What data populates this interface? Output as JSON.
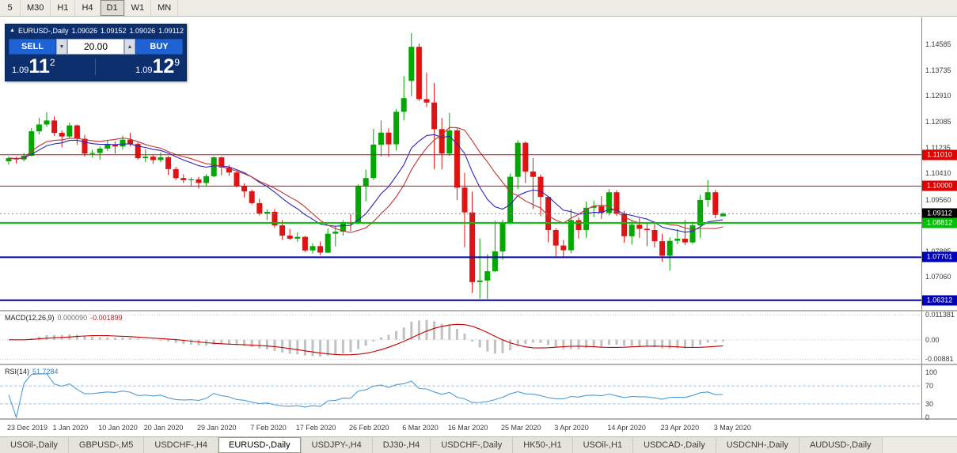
{
  "toolbar": {
    "buttons": [
      "5",
      "M30",
      "H1",
      "H4",
      "D1",
      "W1",
      "MN"
    ],
    "active": "D1"
  },
  "chart_header": {
    "symbol": "EURUSD-,Daily",
    "open": "1.09026",
    "high": "1.09152",
    "low": "1.09026",
    "close": "1.09112"
  },
  "trade_panel": {
    "collapse_icon": "▲",
    "sell_label": "SELL",
    "buy_label": "BUY",
    "volume": "20.00",
    "volume_down_icon": "▼",
    "volume_up_icon": "▲",
    "sell_price": {
      "prefix": "1.09",
      "big": "11",
      "sup": "2"
    },
    "buy_price": {
      "prefix": "1.09",
      "big": "12",
      "sup": "9"
    }
  },
  "tabs": {
    "items": [
      "USOil-,Daily",
      "GBPUSD-,M5",
      "USDCHF-,H4",
      "EURUSD-,Daily",
      "USDJPY-,H4",
      "DJ30-,H4",
      "USDCHF-,Daily",
      "HK50-,H1",
      "USOil-,H1",
      "USDCAD-,Daily",
      "USDCNH-,Daily",
      "AUDUSD-,Daily"
    ],
    "active": "EURUSD-,Daily"
  },
  "colors": {
    "bull": "#00A800",
    "bear": "#E21212",
    "ma_fast": "#2626B8",
    "ma_slow": "#C03434",
    "macd_hist": "#C2C2C2",
    "macd_signal": "#C00000",
    "rsi_line": "#4E9CD6",
    "axis_text": "#3C3C3C"
  },
  "chart_data": {
    "type": "candlestick",
    "symbol": "EURUSD",
    "period": "Daily",
    "title": "EURUSD-,Daily",
    "y_axis_ticks": [
      {
        "text": "1.14585",
        "v": 1.14585
      },
      {
        "text": "1.13735",
        "v": 1.13735
      },
      {
        "text": "1.12910",
        "v": 1.1291
      },
      {
        "text": "1.12085",
        "v": 1.12085
      },
      {
        "text": "1.11235",
        "v": 1.11235
      },
      {
        "text": "1.10410",
        "v": 1.1041
      },
      {
        "text": "1.09560",
        "v": 1.0956
      },
      {
        "text": "1.08735",
        "v": 1.08735
      },
      {
        "text": "1.07885",
        "v": 1.07885
      },
      {
        "text": "1.07060",
        "v": 1.0706
      }
    ],
    "horizontal_lines": [
      {
        "label": "1.11010",
        "v": 1.1101,
        "color": "#E00000",
        "w": 1,
        "style": "solid",
        "role": ""
      },
      {
        "label": "1.10000",
        "v": 1.1,
        "color": "#E00000",
        "w": 1,
        "style": "solid",
        "role": ""
      },
      {
        "label": "1.09112",
        "v": 1.09112,
        "color": "#000000",
        "w": 1,
        "style": "dotted",
        "role": "current"
      },
      {
        "label": "1.08812",
        "v": 1.08812,
        "color": "#00C000",
        "w": 2,
        "style": "solid",
        "role": ""
      },
      {
        "label": "1.07701",
        "v": 1.07701,
        "color": "#0000B8",
        "w": 2,
        "style": "solid",
        "role": ""
      },
      {
        "label": "1.06312",
        "v": 1.06312,
        "color": "#0000B8",
        "w": 2,
        "style": "solid",
        "role": ""
      }
    ],
    "x_axis_labels": [
      {
        "text": "23 Dec 2019",
        "i": 0
      },
      {
        "text": "1 Jan 2020",
        "i": 6
      },
      {
        "text": "10 Jan 2020",
        "i": 12
      },
      {
        "text": "20 Jan 2020",
        "i": 18
      },
      {
        "text": "29 Jan 2020",
        "i": 25
      },
      {
        "text": "7 Feb 2020",
        "i": 32
      },
      {
        "text": "17 Feb 2020",
        "i": 38
      },
      {
        "text": "26 Feb 2020",
        "i": 45
      },
      {
        "text": "6 Mar 2020",
        "i": 52
      },
      {
        "text": "16 Mar 2020",
        "i": 58
      },
      {
        "text": "25 Mar 2020",
        "i": 65
      },
      {
        "text": "3 Apr 2020",
        "i": 72
      },
      {
        "text": "14 Apr 2020",
        "i": 79
      },
      {
        "text": "23 Apr 2020",
        "i": 86
      },
      {
        "text": "3 May 2020",
        "i": 93
      }
    ],
    "indicators": {
      "macd": {
        "name": "MACD(12,26,9)",
        "value_main": "0.000090",
        "value_signal": "-0.001899",
        "axis": [
          {
            "text": "0.011381",
            "v": 0.011381
          },
          {
            "text": "0.00",
            "v": 0
          },
          {
            "text": "-0.00881",
            "v": -0.00881
          }
        ]
      },
      "rsi": {
        "name": "RSI(14)",
        "value": "51.7284",
        "axis": [
          {
            "text": "100",
            "v": 100
          },
          {
            "text": "70",
            "v": 70
          },
          {
            "text": "30",
            "v": 30
          },
          {
            "text": "0",
            "v": 0
          }
        ]
      }
    },
    "ohlc": [
      [
        1.108,
        1.1096,
        1.1069,
        1.109
      ],
      [
        1.109,
        1.1094,
        1.1073,
        1.1086
      ],
      [
        1.1086,
        1.1107,
        1.108,
        1.1098
      ],
      [
        1.1098,
        1.1188,
        1.1096,
        1.1177
      ],
      [
        1.1177,
        1.1221,
        1.1167,
        1.1199
      ],
      [
        1.1199,
        1.1239,
        1.1191,
        1.1212
      ],
      [
        1.1212,
        1.1225,
        1.1162,
        1.1172
      ],
      [
        1.1172,
        1.118,
        1.1125,
        1.116
      ],
      [
        1.116,
        1.1205,
        1.1155,
        1.1196
      ],
      [
        1.1196,
        1.1199,
        1.1133,
        1.1153
      ],
      [
        1.1153,
        1.1165,
        1.1095,
        1.1105
      ],
      [
        1.1105,
        1.1118,
        1.1092,
        1.1107
      ],
      [
        1.1107,
        1.1128,
        1.1085,
        1.1121
      ],
      [
        1.1121,
        1.1148,
        1.1113,
        1.1134
      ],
      [
        1.1134,
        1.1145,
        1.1105,
        1.1128
      ],
      [
        1.1128,
        1.1163,
        1.1118,
        1.115
      ],
      [
        1.115,
        1.1172,
        1.1129,
        1.1136
      ],
      [
        1.1136,
        1.1141,
        1.1085,
        1.109
      ],
      [
        1.109,
        1.1119,
        1.1077,
        1.1095
      ],
      [
        1.1095,
        1.11,
        1.1072,
        1.1084
      ],
      [
        1.1084,
        1.1109,
        1.1077,
        1.1093
      ],
      [
        1.1093,
        1.1097,
        1.1036,
        1.1055
      ],
      [
        1.1055,
        1.1062,
        1.1019,
        1.1026
      ],
      [
        1.1026,
        1.1038,
        1.101,
        1.1019
      ],
      [
        1.1019,
        1.1028,
        1.0998,
        1.1022
      ],
      [
        1.1022,
        1.103,
        1.0992,
        1.101
      ],
      [
        1.101,
        1.1039,
        1.0999,
        1.1032
      ],
      [
        1.1032,
        1.1096,
        1.1028,
        1.1093
      ],
      [
        1.1093,
        1.1095,
        1.1035,
        1.106
      ],
      [
        1.106,
        1.1068,
        1.1033,
        1.1044
      ],
      [
        1.1044,
        1.1048,
        1.0995,
        1.1
      ],
      [
        1.1,
        1.1009,
        1.0963,
        1.0983
      ],
      [
        1.0983,
        1.0988,
        1.0941,
        1.0945
      ],
      [
        1.0945,
        1.0959,
        1.0905,
        1.0911
      ],
      [
        1.0911,
        1.0925,
        1.0891,
        1.0917
      ],
      [
        1.0917,
        1.0926,
        1.0865,
        1.0873
      ],
      [
        1.0873,
        1.089,
        1.0827,
        1.084
      ],
      [
        1.084,
        1.0862,
        1.0826,
        1.083
      ],
      [
        1.083,
        1.0851,
        1.082,
        1.0836
      ],
      [
        1.0836,
        1.0839,
        1.0786,
        1.0792
      ],
      [
        1.0792,
        1.0815,
        1.0782,
        1.0806
      ],
      [
        1.0806,
        1.0821,
        1.0777,
        1.0785
      ],
      [
        1.0785,
        1.0863,
        1.0783,
        1.0846
      ],
      [
        1.0846,
        1.087,
        1.0805,
        1.0853
      ],
      [
        1.0853,
        1.089,
        1.084,
        1.0881
      ],
      [
        1.0881,
        1.091,
        1.0855,
        1.088
      ],
      [
        1.088,
        1.1006,
        1.0878,
        1.1
      ],
      [
        1.1,
        1.1053,
        1.0951,
        1.1026
      ],
      [
        1.1026,
        1.1185,
        1.102,
        1.1134
      ],
      [
        1.1134,
        1.1212,
        1.1095,
        1.1173
      ],
      [
        1.1173,
        1.1187,
        1.1095,
        1.1135
      ],
      [
        1.1135,
        1.1249,
        1.1115,
        1.124
      ],
      [
        1.124,
        1.1355,
        1.1212,
        1.1284
      ],
      [
        1.134,
        1.1495,
        1.129,
        1.145
      ],
      [
        1.145,
        1.146,
        1.1275,
        1.1281
      ],
      [
        1.1281,
        1.1367,
        1.1256,
        1.127
      ],
      [
        1.127,
        1.1333,
        1.1055,
        1.1184
      ],
      [
        1.1184,
        1.122,
        1.1054,
        1.1105
      ],
      [
        1.1105,
        1.1237,
        1.1098,
        1.118
      ],
      [
        1.118,
        1.1189,
        1.0955,
        1.0995
      ],
      [
        1.0995,
        1.1043,
        1.0802,
        1.0915
      ],
      [
        1.0915,
        1.0982,
        1.0655,
        1.069
      ],
      [
        1.069,
        1.0831,
        1.0636,
        1.0695
      ],
      [
        1.0695,
        1.078,
        1.0635,
        1.0725
      ],
      [
        1.0725,
        1.0888,
        1.0722,
        1.0789
      ],
      [
        1.0789,
        1.0892,
        1.0762,
        1.088
      ],
      [
        1.088,
        1.104,
        1.0877,
        1.103
      ],
      [
        1.103,
        1.1148,
        1.099,
        1.114
      ],
      [
        1.114,
        1.1144,
        1.101,
        1.1047
      ],
      [
        1.1047,
        1.1091,
        1.0926,
        1.103
      ],
      [
        1.103,
        1.1038,
        1.0903,
        1.0965
      ],
      [
        1.0965,
        1.0966,
        1.0819,
        1.0858
      ],
      [
        1.0858,
        1.0864,
        1.0773,
        1.0808
      ],
      [
        1.0808,
        1.0826,
        1.0768,
        1.0793
      ],
      [
        1.0793,
        1.0926,
        1.0783,
        1.089
      ],
      [
        1.089,
        1.0899,
        1.083,
        1.0858
      ],
      [
        1.0858,
        1.095,
        1.0833,
        1.093
      ],
      [
        1.093,
        1.0953,
        1.0899,
        1.0935
      ],
      [
        1.0935,
        1.0967,
        1.0894,
        1.0913
      ],
      [
        1.0913,
        1.099,
        1.0905,
        1.098
      ],
      [
        1.098,
        1.0987,
        1.0904,
        1.091
      ],
      [
        1.091,
        1.092,
        1.0817,
        1.0838
      ],
      [
        1.0838,
        1.089,
        1.0811,
        1.0875
      ],
      [
        1.0875,
        1.0897,
        1.0833,
        1.0862
      ],
      [
        1.0862,
        1.0879,
        1.0806,
        1.0858
      ],
      [
        1.0858,
        1.0885,
        1.0802,
        1.0822
      ],
      [
        1.0822,
        1.0846,
        1.0756,
        1.0775
      ],
      [
        1.0775,
        1.0834,
        1.0727,
        1.0823
      ],
      [
        1.0823,
        1.0861,
        1.0812,
        1.083
      ],
      [
        1.083,
        1.089,
        1.081,
        1.0818
      ],
      [
        1.0818,
        1.0885,
        1.0813,
        1.0873
      ],
      [
        1.0873,
        1.0972,
        1.0833,
        1.0955
      ],
      [
        1.0955,
        1.1019,
        1.0933,
        1.098
      ],
      [
        1.098,
        1.0988,
        1.0896,
        1.0907
      ],
      [
        1.09026,
        1.09152,
        1.09026,
        1.09112
      ]
    ]
  }
}
